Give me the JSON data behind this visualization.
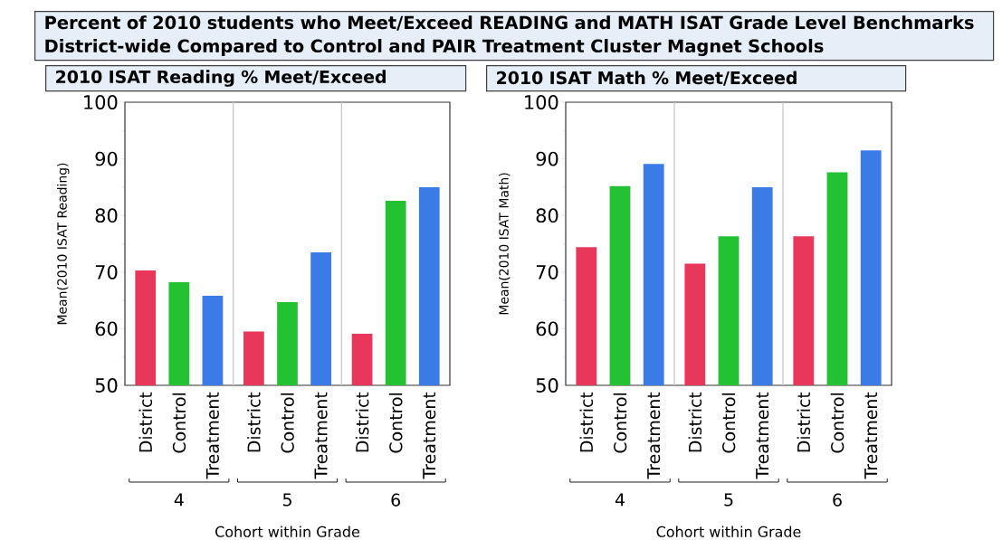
{
  "chart_data": [
    {
      "type": "bar",
      "title": "2010 ISAT Reading % Meet/Exceed",
      "annotations": [
        "Percent of 2010 students who Meet/Exceed READING and MATH ISAT Grade Level Benchmarks District-wide Compared to Control and PAIR Treatment Cluster Magnet Schools"
      ],
      "xlabel": "Cohort within Grade",
      "ylabel": "Mean(2010 ISAT Reading)",
      "categories": [
        "4",
        "5",
        "6"
      ],
      "series": [
        {
          "name": "District",
          "color": "#e8375a",
          "values": [
            70.3,
            59.5,
            59.1
          ]
        },
        {
          "name": "Control",
          "color": "#22c232",
          "values": [
            68.2,
            64.7,
            82.6
          ]
        },
        {
          "name": "Treatment",
          "color": "#3a7be8",
          "values": [
            65.8,
            73.5,
            85.0
          ]
        }
      ],
      "ylim": [
        50,
        100
      ],
      "yticks": [
        50,
        {
          "value": 55,
          "label": null
        },
        60,
        {
          "value": 65,
          "label": null
        },
        70,
        {
          "value": 75,
          "label": null
        },
        80,
        {
          "value": 85,
          "label": null
        },
        90,
        {
          "value": 95,
          "label": null
        },
        100
      ]
    },
    {
      "type": "bar",
      "title": "2010 ISAT Math % Meet/Exceed",
      "xlabel": "Cohort within Grade",
      "ylabel": "Mean(2010 ISAT Math)",
      "categories": [
        "4",
        "5",
        "6"
      ],
      "series": [
        {
          "name": "District",
          "color": "#e8375a",
          "values": [
            74.4,
            71.5,
            76.3
          ]
        },
        {
          "name": "Control",
          "color": "#22c232",
          "values": [
            85.2,
            76.3,
            87.6
          ]
        },
        {
          "name": "Treatment",
          "color": "#3a7be8",
          "values": [
            89.1,
            85.0,
            91.5
          ]
        }
      ],
      "ylim": [
        50,
        100
      ],
      "yticks": [
        50,
        {
          "value": 55,
          "label": null
        },
        60,
        {
          "value": 65,
          "label": null
        },
        70,
        {
          "value": 75,
          "label": null
        },
        80,
        {
          "value": 85,
          "label": null
        },
        90,
        {
          "value": 95,
          "label": null
        },
        100
      ]
    }
  ]
}
